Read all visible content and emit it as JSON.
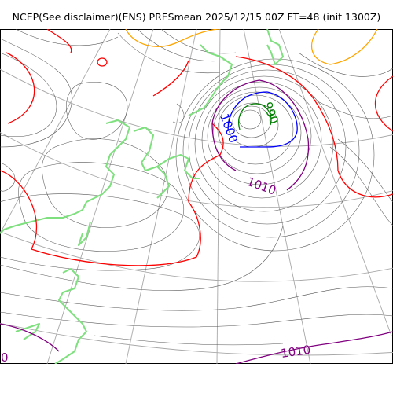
{
  "title": "NCEP(See disclaimer)(ENS) PRESmean 2025/12/15 00Z FT=48 (init 1300Z)",
  "contour_labels": {
    "l990": "990",
    "l1000": "1000",
    "l1010a": "1010",
    "l1010b": "1010",
    "l1010c": "0"
  },
  "colors": {
    "isobar": "#555555",
    "c990": "#008000",
    "c1000": "#0000ff",
    "c1010": "#800080",
    "c1020": "#ff0000",
    "c1030": "#ffa500",
    "coastline": "#7fe07f",
    "graticule": "#a8a8a8"
  }
}
